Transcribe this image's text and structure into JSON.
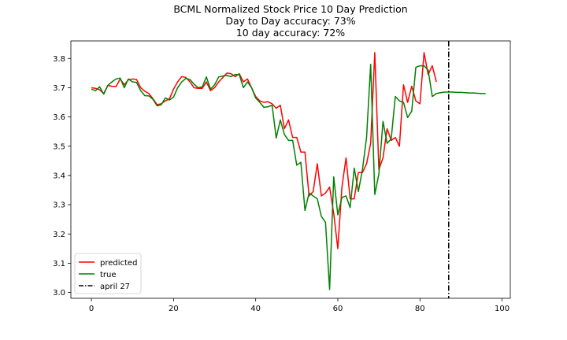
{
  "chart_data": {
    "type": "line",
    "title_lines": [
      "BCML Normalized Stock Price 10 Day Prediction",
      "Day to Day accuracy: 73%",
      "10 day accuracy: 72%"
    ],
    "xlim": [
      -5,
      102
    ],
    "ylim": [
      2.98,
      3.86
    ],
    "x_ticks": [
      0,
      20,
      40,
      60,
      80,
      100
    ],
    "y_ticks": [
      3.0,
      3.1,
      3.2,
      3.3,
      3.4,
      3.5,
      3.6,
      3.7,
      3.8
    ],
    "x_tick_labels": [
      "0",
      "20",
      "40",
      "60",
      "80",
      "100"
    ],
    "y_tick_labels": [
      "3.0",
      "3.1",
      "3.2",
      "3.3",
      "3.4",
      "3.5",
      "3.6",
      "3.7",
      "3.8"
    ],
    "grid": false,
    "legend_position": "lower-left",
    "vline": {
      "x": 87,
      "label": "april 27",
      "color": "#000000",
      "style": "dash-dot"
    },
    "series": [
      {
        "name": "predicted",
        "color": "#ff0000",
        "x_start": 0,
        "values": [
          3.7,
          3.698,
          3.693,
          3.68,
          3.708,
          3.705,
          3.704,
          3.73,
          3.71,
          3.727,
          3.73,
          3.728,
          3.7,
          3.688,
          3.68,
          3.662,
          3.642,
          3.645,
          3.655,
          3.662,
          3.695,
          3.72,
          3.738,
          3.735,
          3.72,
          3.7,
          3.698,
          3.698,
          3.72,
          3.69,
          3.7,
          3.72,
          3.735,
          3.75,
          3.748,
          3.738,
          3.748,
          3.72,
          3.73,
          3.7,
          3.67,
          3.655,
          3.65,
          3.652,
          3.645,
          3.63,
          3.64,
          3.56,
          3.59,
          3.53,
          3.53,
          3.48,
          3.48,
          3.33,
          3.345,
          3.44,
          3.33,
          3.34,
          3.36,
          3.27,
          3.15,
          3.36,
          3.46,
          3.32,
          3.32,
          3.41,
          3.41,
          3.44,
          3.51,
          3.82,
          3.42,
          3.46,
          3.56,
          3.52,
          3.53,
          3.5,
          3.71,
          3.65,
          3.705,
          3.655,
          3.645,
          3.82,
          3.745,
          3.775,
          3.72
        ]
      },
      {
        "name": "true",
        "color": "#008000",
        "x_start": 0,
        "values": [
          3.695,
          3.69,
          3.703,
          3.678,
          3.708,
          3.72,
          3.73,
          3.733,
          3.7,
          3.73,
          3.72,
          3.718,
          3.69,
          3.673,
          3.672,
          3.66,
          3.638,
          3.642,
          3.665,
          3.658,
          3.668,
          3.7,
          3.72,
          3.732,
          3.728,
          3.712,
          3.7,
          3.703,
          3.737,
          3.695,
          3.71,
          3.737,
          3.74,
          3.742,
          3.738,
          3.745,
          3.745,
          3.7,
          3.72,
          3.7,
          3.665,
          3.65,
          3.633,
          3.635,
          3.64,
          3.528,
          3.59,
          3.54,
          3.52,
          3.52,
          3.435,
          3.445,
          3.28,
          3.34,
          3.33,
          3.32,
          3.26,
          3.24,
          3.01,
          3.395,
          3.265,
          3.325,
          3.33,
          3.29,
          3.425,
          3.345,
          3.42,
          3.53,
          3.78,
          3.335,
          3.405,
          3.585,
          3.51,
          3.525,
          3.67,
          3.655,
          3.65,
          3.598,
          3.62,
          3.77,
          3.775,
          3.775,
          3.76,
          3.67,
          3.68,
          3.683,
          3.685,
          3.685,
          3.685,
          3.684,
          3.684,
          3.683,
          3.682,
          3.682,
          3.681,
          3.68,
          3.68
        ]
      }
    ]
  }
}
